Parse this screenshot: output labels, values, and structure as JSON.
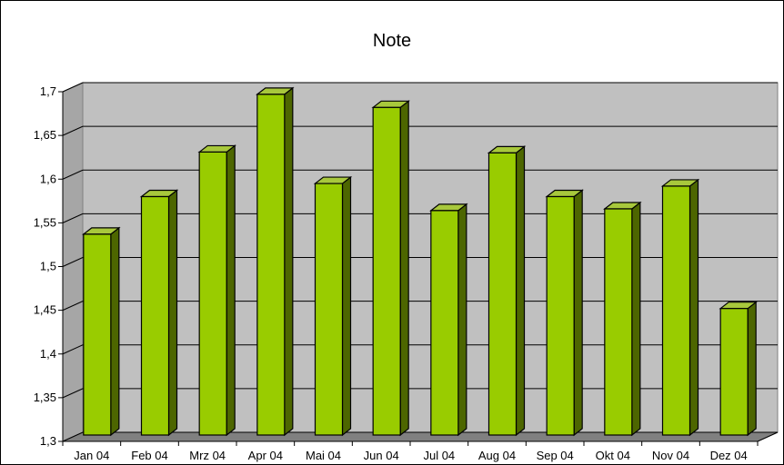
{
  "chart_data": {
    "type": "bar",
    "title": "Note",
    "categories": [
      "Jan 04",
      "Feb 04",
      "Mrz 04",
      "Apr 04",
      "Mai 04",
      "Jun 04",
      "Jul 04",
      "Aug 04",
      "Sep 04",
      "Okt 04",
      "Nov 04",
      "Dez 04"
    ],
    "values": [
      1.537,
      1.58,
      1.631,
      1.697,
      1.595,
      1.682,
      1.564,
      1.63,
      1.58,
      1.566,
      1.592,
      1.452
    ],
    "ylim": [
      1.3,
      1.7
    ],
    "yticks": [
      "1,3",
      "1,35",
      "1,4",
      "1,45",
      "1,5",
      "1,55",
      "1,6",
      "1,65",
      "1,7"
    ],
    "grid": true,
    "style": "3d-column",
    "colors": {
      "bar_front": "#99cc00",
      "bar_side": "#4d6600",
      "bar_top": "#a8c83c",
      "wall": "#c0c0c0",
      "floor": "#808080"
    }
  }
}
